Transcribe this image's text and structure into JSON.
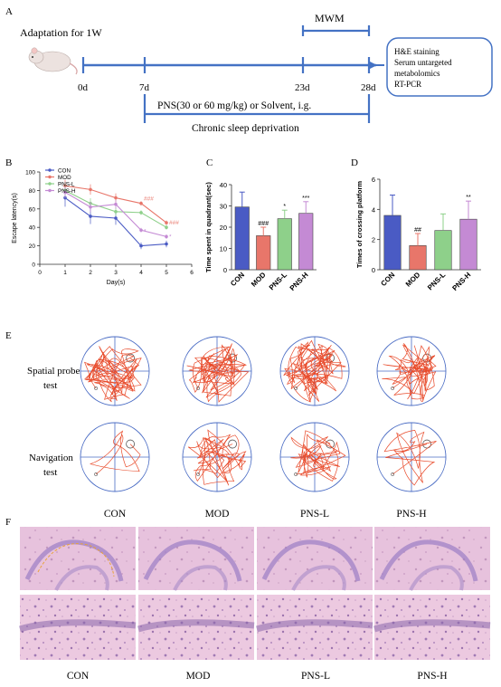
{
  "panel_labels": [
    "A",
    "B",
    "C",
    "D",
    "E",
    "F"
  ],
  "timeline": {
    "adaptation": "Adaptation for 1W",
    "mwm": "MWM",
    "days": [
      "0d",
      "7d",
      "23d",
      "28d"
    ],
    "treatment": "PNS(30 or 60 mg/kg) or Solvent, i.g.",
    "deprivation": "Chronic sleep deprivation",
    "outcomes": [
      "H&E staining",
      "Serum untargeted",
      "metabolomics",
      "RT-PCR"
    ]
  },
  "colors": {
    "CON": "#4a5bc4",
    "MOD": "#e8766a",
    "PNS-L": "#8ed08a",
    "PNS-H": "#c48ad4",
    "timeline_blue": "#4472c4",
    "track_red": "#e84a2a"
  },
  "chart_data": [
    {
      "type": "line",
      "ylabel": "Escape latency(s)",
      "xlabel": "Day(s)",
      "x": [
        1,
        2,
        3,
        4,
        5
      ],
      "xlim": [
        0,
        6
      ],
      "ylim": [
        0,
        100
      ],
      "xticks": [
        "0",
        "1",
        "2",
        "3",
        "4",
        "5",
        "6"
      ],
      "yticks": [
        "0",
        "20",
        "40",
        "60",
        "80",
        "100"
      ],
      "legend_position": "top-left",
      "series": [
        {
          "name": "CON",
          "values": [
            72,
            52,
            50,
            20,
            22
          ]
        },
        {
          "name": "MOD",
          "values": [
            85,
            81,
            72,
            66,
            45
          ]
        },
        {
          "name": "PNS-L",
          "values": [
            80,
            66,
            57,
            56,
            40
          ]
        },
        {
          "name": "PNS-H",
          "values": [
            78,
            62,
            65,
            37,
            30
          ]
        }
      ],
      "annotations": [
        "###",
        "###",
        "*",
        "*"
      ]
    },
    {
      "type": "bar",
      "ylabel": "Time spent in quadrant(sec)",
      "categories": [
        "CON",
        "MOD",
        "PNS-L",
        "PNS-H"
      ],
      "values": [
        29.5,
        16,
        24,
        26.5
      ],
      "errors": [
        7,
        4,
        4,
        5.5
      ],
      "ylim": [
        0,
        40
      ],
      "yticks": [
        "0",
        "10",
        "20",
        "30",
        "40"
      ],
      "annotations": [
        "",
        "###",
        "*",
        "***"
      ]
    },
    {
      "type": "bar",
      "ylabel": "Times of crossing platform",
      "categories": [
        "CON",
        "MOD",
        "PNS-L",
        "PNS-H"
      ],
      "values": [
        3.6,
        1.6,
        2.6,
        3.35
      ],
      "errors": [
        1.35,
        0.8,
        1.1,
        1.2
      ],
      "ylim": [
        0,
        6
      ],
      "yticks": [
        "0",
        "2",
        "4",
        "6"
      ],
      "annotations": [
        "",
        "##",
        "",
        "**"
      ]
    }
  ],
  "panel_e": {
    "row_labels": [
      "Spatial probe",
      "test",
      "Navigation",
      "test"
    ],
    "groups": [
      "CON",
      "MOD",
      "PNS-L",
      "PNS-H"
    ]
  },
  "panel_f": {
    "groups": [
      "CON",
      "MOD",
      "PNS-L",
      "PNS-H"
    ]
  }
}
